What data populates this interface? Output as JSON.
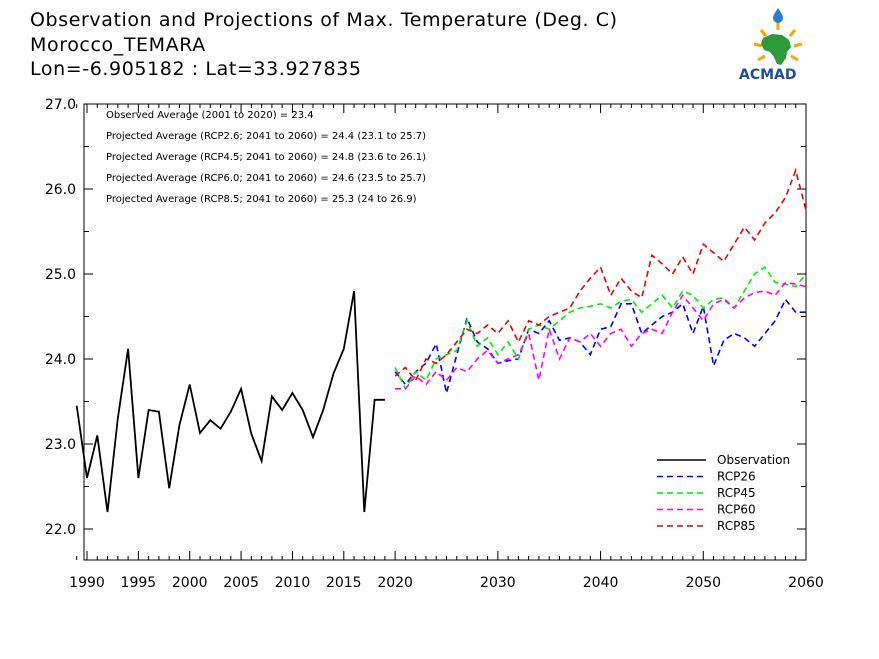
{
  "title_lines": [
    "Observation and Projections of Max. Temperature (Deg. C)",
    "Morocco_TEMARA",
    "Lon=-6.905182 : Lat=33.927835"
  ],
  "logo": {
    "text": "ACMAD"
  },
  "notes": [
    "Observed Average (2001 to 2020) = 23.4",
    "Projected Average (RCP2.6; 2041 to 2060) = 24.4 (23.1 to 25.7)",
    "Projected Average (RCP4.5; 2041 to 2060) = 24.8 (23.6 to 26.1)",
    "Projected Average (RCP6.0; 2041 to 2060) = 24.6 (23.5 to 25.7)",
    "Projected Average (RCP8.5; 2041 to 2060) = 25.3 (24 to 26.9)"
  ],
  "chart_data": {
    "type": "line",
    "xlim": [
      1989,
      2060
    ],
    "ylim": [
      21.65,
      27.1
    ],
    "grid": false,
    "legend_position": "bottom-right",
    "y_ticks": [
      22.0,
      23.0,
      24.0,
      25.0,
      26.0,
      27.0
    ],
    "y_tick_labels": [
      "22.0",
      "23.0",
      "24.0",
      "25.0",
      "26.0",
      "27.0"
    ],
    "x_ticks": [
      1990,
      1995,
      2000,
      2005,
      2010,
      2015,
      2020,
      2030,
      2040,
      2050,
      2060
    ],
    "x_tick_labels": [
      "1990",
      "1995",
      "2000",
      "2005",
      "2010",
      "2015",
      "2020",
      "2030",
      "2040",
      "2050",
      "2060"
    ],
    "series": [
      {
        "name": "Observation",
        "color": "#000000",
        "dashed": false,
        "x": [
          1989,
          1990,
          1991,
          1992,
          1993,
          1994,
          1995,
          1996,
          1997,
          1998,
          1999,
          2000,
          2001,
          2002,
          2003,
          2004,
          2005,
          2006,
          2007,
          2008,
          2009,
          2010,
          2011,
          2012,
          2013,
          2014,
          2015,
          2016,
          2017,
          2018,
          2019
        ],
        "values": [
          23.45,
          22.6,
          23.1,
          22.2,
          23.3,
          24.12,
          22.6,
          23.4,
          23.38,
          22.48,
          23.22,
          23.7,
          23.13,
          23.28,
          23.18,
          23.38,
          23.65,
          23.12,
          22.8,
          23.56,
          23.4,
          23.6,
          23.4,
          23.08,
          23.4,
          23.83,
          24.12,
          24.8,
          22.2,
          23.52,
          23.52
        ]
      },
      {
        "name": "RCP26",
        "color": "#0000ff",
        "dashed": true,
        "x": [
          2020,
          2021,
          2022,
          2023,
          2024,
          2025,
          2026,
          2027,
          2028,
          2029,
          2030,
          2031,
          2032,
          2033,
          2034,
          2035,
          2036,
          2037,
          2038,
          2039,
          2040,
          2041,
          2042,
          2043,
          2044,
          2045,
          2046,
          2047,
          2048,
          2049,
          2050,
          2051,
          2052,
          2053,
          2054,
          2055,
          2056,
          2057,
          2058,
          2059,
          2060
        ],
        "values": [
          23.85,
          23.7,
          23.85,
          23.95,
          24.18,
          23.6,
          24.05,
          24.48,
          24.2,
          24.12,
          23.95,
          23.98,
          24.0,
          24.35,
          24.3,
          24.45,
          24.22,
          24.25,
          24.2,
          24.05,
          24.35,
          24.38,
          24.65,
          24.65,
          24.3,
          24.4,
          24.5,
          24.55,
          24.65,
          24.3,
          24.62,
          23.92,
          24.22,
          24.3,
          24.25,
          24.15,
          24.3,
          24.45,
          24.7,
          24.55,
          24.55
        ]
      },
      {
        "name": "RCP45",
        "color": "#00ee00",
        "dashed": true,
        "x": [
          2020,
          2021,
          2022,
          2023,
          2024,
          2025,
          2026,
          2027,
          2028,
          2029,
          2030,
          2031,
          2032,
          2033,
          2034,
          2035,
          2036,
          2037,
          2038,
          2039,
          2040,
          2041,
          2042,
          2043,
          2044,
          2045,
          2046,
          2047,
          2048,
          2049,
          2050,
          2051,
          2052,
          2053,
          2054,
          2055,
          2056,
          2057,
          2058,
          2059,
          2060
        ],
        "values": [
          23.9,
          23.65,
          23.85,
          23.75,
          24.0,
          24.05,
          24.1,
          24.45,
          24.15,
          24.25,
          24.05,
          24.2,
          24.0,
          24.35,
          24.4,
          24.35,
          24.45,
          24.55,
          24.6,
          24.62,
          24.65,
          24.6,
          24.68,
          24.7,
          24.55,
          24.65,
          24.75,
          24.6,
          24.8,
          24.75,
          24.6,
          24.7,
          24.72,
          24.6,
          24.8,
          25.0,
          25.08,
          24.9,
          24.88,
          24.85,
          25.0
        ]
      },
      {
        "name": "RCP60",
        "color": "#ff00ff",
        "dashed": true,
        "x": [
          2020,
          2021,
          2022,
          2023,
          2024,
          2025,
          2026,
          2027,
          2028,
          2029,
          2030,
          2031,
          2032,
          2033,
          2034,
          2035,
          2036,
          2037,
          2038,
          2039,
          2040,
          2041,
          2042,
          2043,
          2044,
          2045,
          2046,
          2047,
          2048,
          2049,
          2050,
          2051,
          2052,
          2053,
          2054,
          2055,
          2056,
          2057,
          2058,
          2059,
          2060
        ],
        "values": [
          23.65,
          23.65,
          23.8,
          23.7,
          23.85,
          23.75,
          23.9,
          23.85,
          24.0,
          24.1,
          23.95,
          24.0,
          24.05,
          24.3,
          23.75,
          24.35,
          24.0,
          24.25,
          24.2,
          24.3,
          24.15,
          24.3,
          24.35,
          24.15,
          24.3,
          24.35,
          24.3,
          24.55,
          24.75,
          24.6,
          24.45,
          24.65,
          24.7,
          24.6,
          24.72,
          24.78,
          24.8,
          24.75,
          24.9,
          24.88,
          24.85
        ]
      },
      {
        "name": "RCP85",
        "color": "#ee0000",
        "dashed": true,
        "x": [
          2020,
          2021,
          2022,
          2023,
          2024,
          2025,
          2026,
          2027,
          2028,
          2029,
          2030,
          2031,
          2032,
          2033,
          2034,
          2035,
          2036,
          2037,
          2038,
          2039,
          2040,
          2041,
          2042,
          2043,
          2044,
          2045,
          2046,
          2047,
          2048,
          2049,
          2050,
          2051,
          2052,
          2053,
          2054,
          2055,
          2056,
          2057,
          2058,
          2059,
          2060
        ],
        "values": [
          23.8,
          23.9,
          23.75,
          24.0,
          23.95,
          24.05,
          24.2,
          24.35,
          24.3,
          24.4,
          24.3,
          24.45,
          24.2,
          24.45,
          24.4,
          24.5,
          24.55,
          24.6,
          24.8,
          24.95,
          25.08,
          24.75,
          24.95,
          24.8,
          24.72,
          25.22,
          25.12,
          25.0,
          25.2,
          25.0,
          25.35,
          25.25,
          25.15,
          25.35,
          25.55,
          25.4,
          25.6,
          25.72,
          25.9,
          26.22,
          25.75
        ]
      }
    ]
  }
}
